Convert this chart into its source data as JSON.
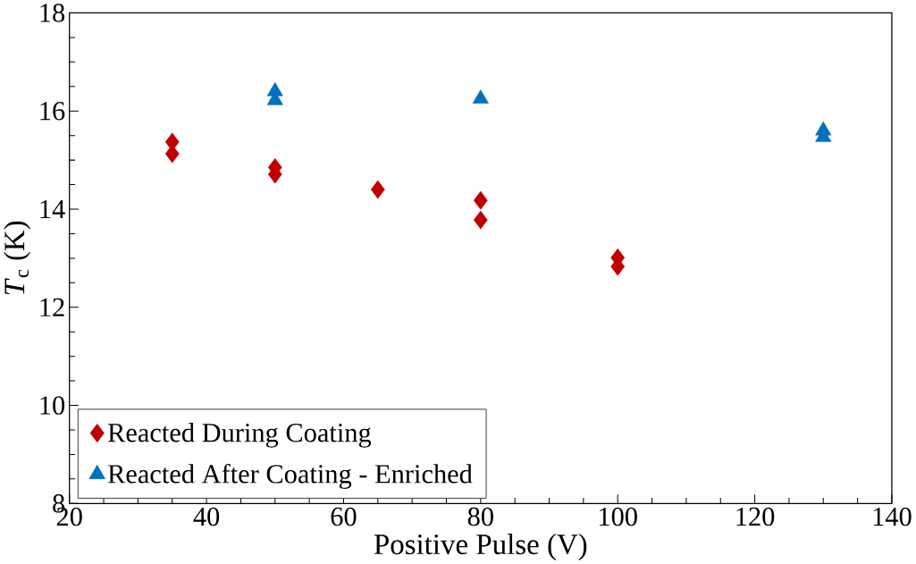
{
  "chart_data": {
    "type": "scatter",
    "xlabel": "Positive Pulse (V)",
    "ylabel": "*T*$_{c}$ (K)",
    "xlim": [
      20,
      140
    ],
    "xticks": [
      20,
      40,
      60,
      80,
      100,
      120,
      140
    ],
    "ylim": [
      8,
      18
    ],
    "yticks": [
      8,
      10,
      12,
      14,
      16,
      18
    ],
    "grid": false,
    "legend": "bottom left",
    "series": [
      {
        "name": "Reacted During Coating",
        "color": "#c00000",
        "marker": "diamond",
        "x": [
          35,
          35,
          50,
          50,
          65,
          80,
          80,
          100,
          100
        ],
        "values": [
          15.37,
          15.13,
          14.85,
          14.71,
          14.4,
          14.18,
          13.78,
          13.01,
          12.83
        ]
      },
      {
        "name": "Reacted After Coating - Enriched",
        "color": "#0070c0",
        "marker": "triangle",
        "x": [
          50,
          50,
          80,
          130,
          130
        ],
        "values": [
          16.4,
          16.22,
          16.25,
          15.6,
          15.47
        ]
      }
    ]
  }
}
